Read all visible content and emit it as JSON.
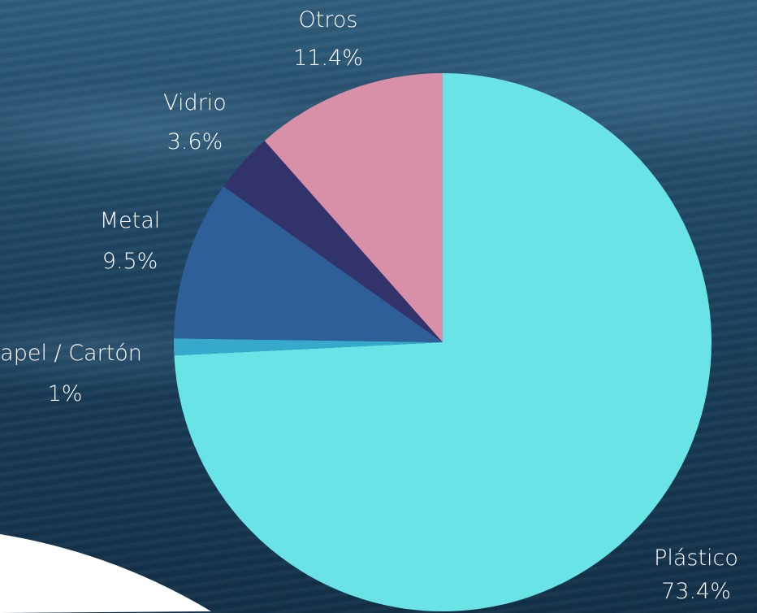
{
  "chart_data": {
    "type": "pie",
    "categories": [
      "Plástico",
      "Papel / Cartón",
      "Metal",
      "Vidrio",
      "Otros"
    ],
    "values": [
      73.4,
      1,
      9.5,
      3.6,
      11.4
    ],
    "value_labels": [
      "73.4%",
      "1%",
      "9.5%",
      "3.6%",
      "11.4%"
    ],
    "colors": [
      "#6ae3e6",
      "#36a9cc",
      "#2e5f99",
      "#33336b",
      "#d88fa8"
    ],
    "start_angle_deg": 0,
    "direction": "clockwise"
  },
  "background": {
    "water_color": "#1f4764",
    "foreground_color": "#ffffff"
  }
}
